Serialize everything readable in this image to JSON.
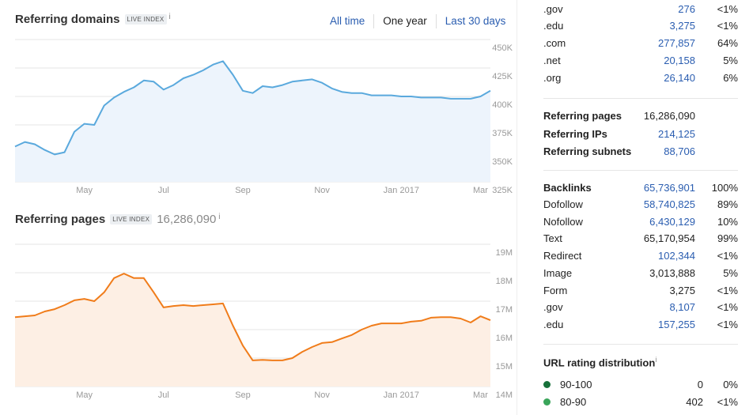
{
  "chart_data": [
    {
      "type": "line",
      "title": "Referring domains",
      "badge": "LIVE INDEX",
      "info": "i",
      "categories": [
        null,
        null,
        null,
        null,
        null,
        null,
        null,
        "May",
        null,
        null,
        null,
        null,
        null,
        null,
        null,
        "Jul",
        null,
        null,
        null,
        null,
        null,
        null,
        null,
        "Sep",
        null,
        null,
        null,
        null,
        null,
        null,
        null,
        "Nov",
        null,
        null,
        null,
        null,
        null,
        null,
        null,
        "Jan 2017",
        null,
        null,
        null,
        null,
        null,
        null,
        null,
        "Mar",
        null
      ],
      "values": [
        356000,
        360000,
        358000,
        353000,
        349000,
        351000,
        369000,
        376000,
        375000,
        392000,
        399000,
        404000,
        408000,
        414000,
        413000,
        406000,
        410000,
        416000,
        419000,
        423000,
        428000,
        431000,
        419000,
        405000,
        403000,
        409000,
        408000,
        410000,
        413000,
        414000,
        415000,
        412000,
        407000,
        404000,
        403000,
        403000,
        401000,
        401000,
        401000,
        400000,
        400000,
        399000,
        399000,
        399000,
        398000,
        398000,
        398000,
        400000,
        405000
      ],
      "color": "#5aa9dd",
      "fill": "#edf4fc",
      "ylim": [
        325000,
        450000
      ],
      "yticks": [
        {
          "value": 325000,
          "label": "325K"
        },
        {
          "value": 350000,
          "label": "350K"
        },
        {
          "value": 375000,
          "label": "375K"
        },
        {
          "value": 400000,
          "label": "400K"
        },
        {
          "value": 425000,
          "label": "425K"
        },
        {
          "value": 450000,
          "label": "450K"
        }
      ],
      "grid": true
    },
    {
      "type": "line",
      "title": "Referring pages",
      "badge": "LIVE INDEX",
      "total": "16,286,090",
      "info": "i",
      "categories": [
        null,
        null,
        null,
        null,
        null,
        null,
        null,
        "May",
        null,
        null,
        null,
        null,
        null,
        null,
        null,
        "Jul",
        null,
        null,
        null,
        null,
        null,
        null,
        null,
        "Sep",
        null,
        null,
        null,
        null,
        null,
        null,
        null,
        "Nov",
        null,
        null,
        null,
        null,
        null,
        null,
        null,
        "Jan 2017",
        null,
        null,
        null,
        null,
        null,
        null,
        null,
        "Mar",
        null
      ],
      "values": [
        16440000,
        16470000,
        16500000,
        16640000,
        16720000,
        16860000,
        17030000,
        17080000,
        17000000,
        17310000,
        17810000,
        17970000,
        17810000,
        17810000,
        17310000,
        16780000,
        16830000,
        16860000,
        16830000,
        16860000,
        16890000,
        16920000,
        16140000,
        15440000,
        14920000,
        14940000,
        14920000,
        14920000,
        15000000,
        15220000,
        15390000,
        15530000,
        15560000,
        15690000,
        15810000,
        16000000,
        16140000,
        16220000,
        16220000,
        16220000,
        16280000,
        16310000,
        16420000,
        16440000,
        16440000,
        16390000,
        16250000,
        16470000,
        16330000
      ],
      "color": "#f07c1a",
      "fill": "#fdefe4",
      "ylim": [
        14000000,
        19000000
      ],
      "yticks": [
        {
          "value": 14000000,
          "label": "14M"
        },
        {
          "value": 15000000,
          "label": "15M"
        },
        {
          "value": 16000000,
          "label": "16M"
        },
        {
          "value": 17000000,
          "label": "17M"
        },
        {
          "value": 18000000,
          "label": "18M"
        },
        {
          "value": 19000000,
          "label": "19M"
        }
      ],
      "grid": true
    }
  ],
  "range_buttons": [
    "All time",
    "One year",
    "Last 30 days"
  ],
  "domain_types": [
    [
      ".gov",
      "276",
      "<1%"
    ],
    [
      ".edu",
      "3,275",
      "<1%"
    ],
    [
      ".com",
      "277,857",
      "64%"
    ],
    [
      ".net",
      "20,158",
      "5%"
    ],
    [
      ".org",
      "26,140",
      "6%"
    ]
  ],
  "totals": [
    [
      "Referring pages",
      "16,286,090"
    ],
    [
      "Referring IPs",
      "214,125"
    ],
    [
      "Referring subnets",
      "88,706"
    ]
  ],
  "backlinks": [
    [
      "Backlinks",
      "65,736,901",
      "100%"
    ],
    [
      "Dofollow",
      "58,740,825",
      "89%"
    ],
    [
      "Nofollow",
      "6,430,129",
      "10%"
    ],
    [
      "Text",
      "65,170,954",
      "99%"
    ],
    [
      "Redirect",
      "102,344",
      "<1%"
    ],
    [
      "Image",
      "3,013,888",
      "5%"
    ],
    [
      "Form",
      "3,275",
      "<1%"
    ],
    [
      ".gov",
      "8,107",
      "<1%"
    ],
    [
      ".edu",
      "157,255",
      "<1%"
    ]
  ],
  "url_rating": {
    "title": "URL rating distribution",
    "info": "i",
    "rows": [
      [
        "90-100",
        "0",
        "0%"
      ],
      [
        "80-90",
        "402",
        "<1%"
      ]
    ]
  }
}
